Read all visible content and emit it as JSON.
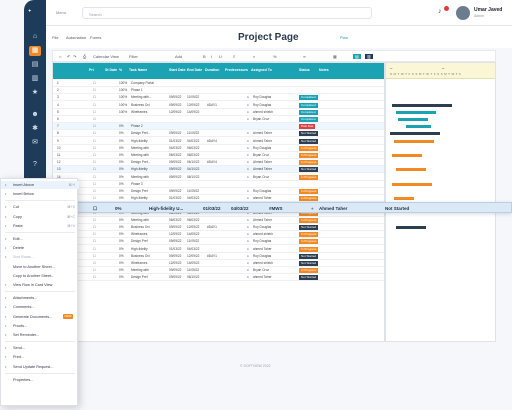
{
  "topbar": {
    "menu": "Menu",
    "search_placeholder": "Search",
    "user_name": "Umar Javed",
    "user_role": "Admin"
  },
  "subbar": {
    "tabs": [
      "File",
      "Automation",
      "Forms"
    ],
    "title": "Project Page",
    "plan": "Plan"
  },
  "toolbar": {
    "items": [
      "Calendar View",
      "Filter",
      "Add"
    ]
  },
  "grid": {
    "headers": [
      "Pri",
      "St Date",
      "%",
      "Task Name",
      "Start Date",
      "End Date",
      "Duration",
      "Predecessors",
      "Assigned To",
      "Status",
      "Notes"
    ],
    "rows": [
      {
        "num": "1",
        "pct": "100%",
        "task": "Company Portal",
        "start": "",
        "end": "",
        "dur": "",
        "assignee": "",
        "status": "",
        "scolor": ""
      },
      {
        "num": "2",
        "pct": "100%",
        "task": "Phase 1",
        "start": "",
        "end": "",
        "dur": "",
        "assignee": "",
        "status": "",
        "scolor": ""
      },
      {
        "num": "3",
        "pct": "100%",
        "task": "Meeting with...",
        "start": "09/09/22",
        "end": "11/09/22",
        "dur": "",
        "assignee": "Roy Douglas",
        "status": "Completed",
        "scolor": "#1ba3b3"
      },
      {
        "num": "4",
        "pct": "100%",
        "task": "Business Ovi",
        "start": "09/09/22",
        "end": "12/09/22",
        "dur": "#DAY1",
        "assignee": "Roy Douglas",
        "status": "Completed",
        "scolor": "#1ba3b3"
      },
      {
        "num": "5",
        "pct": "100%",
        "task": "Wireframes",
        "start": "12/09/22",
        "end": "14/09/22",
        "dur": "",
        "assignee": "ahmed shiekh",
        "status": "Completed",
        "scolor": "#1ba3b3"
      },
      {
        "num": "6",
        "pct": "",
        "task": "",
        "start": "",
        "end": "",
        "dur": "",
        "assignee": "Bryan Cruz",
        "status": "Completed",
        "scolor": "#1ba3b3"
      },
      {
        "num": "7",
        "pct": "0%",
        "task": "Phase 2",
        "start": "",
        "end": "",
        "dur": "",
        "assignee": "",
        "status": "Past Due",
        "scolor": "#d64545"
      },
      {
        "num": "8",
        "pct": "0%",
        "task": "Design Pref...",
        "start": "09/09/22",
        "end": "11/09/22",
        "dur": "",
        "assignee": "Ahmed Taher",
        "status": "Not Started",
        "scolor": "#2c3e50"
      },
      {
        "num": "9",
        "pct": "0%",
        "task": "High-fidelity",
        "start": "01/03/22",
        "end": "04/03/22",
        "dur": "#DAY4",
        "assignee": "Ahmed Taher",
        "status": "Not Started",
        "scolor": "#2c3e50"
      },
      {
        "num": "10",
        "pct": "0%",
        "task": "Meeting with",
        "start": "04/03/22",
        "end": "06/03/22",
        "dur": "",
        "assignee": "Roy Douglas",
        "status": "In Progress",
        "scolor": "#f08a24"
      },
      {
        "num": "11",
        "pct": "0%",
        "task": "Meeting with",
        "start": "06/03/22",
        "end": "06/03/22",
        "dur": "",
        "assignee": "Bryan Cruz",
        "status": "In Progress",
        "scolor": "#f08a24"
      },
      {
        "num": "12",
        "pct": "0%",
        "task": "Design Pref...",
        "start": "09/09/22",
        "end": "06/10/22",
        "dur": "#DAY4",
        "assignee": "Ahmed Taher",
        "status": "In Progress",
        "scolor": "#f08a24"
      },
      {
        "num": "13",
        "pct": "0%",
        "task": "High-fidelity",
        "start": "09/09/22",
        "end": "04/10/22",
        "dur": "",
        "assignee": "Ahmed Taher",
        "status": "Not Started",
        "scolor": "#2c3e50"
      },
      {
        "num": "14",
        "pct": "0%",
        "task": "Meeting with",
        "start": "09/09/22",
        "end": "06/10/22",
        "dur": "",
        "assignee": "Bryan Cruz",
        "status": "In Progress",
        "scolor": "#f08a24"
      },
      {
        "num": "15",
        "pct": "0%",
        "task": "Phase 3",
        "start": "",
        "end": "",
        "dur": "",
        "assignee": "",
        "status": "",
        "scolor": ""
      },
      {
        "num": "16",
        "pct": "0%",
        "task": "Design Pref",
        "start": "09/09/22",
        "end": "11/09/22",
        "dur": "",
        "assignee": "Roy Douglas",
        "status": "In Progress",
        "scolor": "#f08a24"
      },
      {
        "num": "17",
        "pct": "0%",
        "task": "High-fidelity",
        "start": "01/03/22",
        "end": "04/03/22",
        "dur": "",
        "assignee": "ahmed Taher",
        "status": "In Progress",
        "scolor": "#f08a24"
      },
      {
        "num": "18",
        "pct": "0%",
        "task": "Meeting with",
        "start": "04/03/22",
        "end": "06/03/22",
        "dur": "",
        "assignee": "Bryan Cruz",
        "status": "In Progress",
        "scolor": "#f08a24"
      },
      {
        "num": "19",
        "pct": "0%",
        "task": "Meeting with",
        "start": "06/03/22",
        "end": "06/03/22",
        "dur": "",
        "assignee": "Ahmed Taher",
        "status": "In Progress",
        "scolor": "#f08a24"
      },
      {
        "num": "20",
        "pct": "0%",
        "task": "Meeting with",
        "start": "06/03/22",
        "end": "06/03/22",
        "dur": "",
        "assignee": "Ahmed Taher",
        "status": "In Progress",
        "scolor": "#f08a24"
      },
      {
        "num": "21",
        "pct": "0%",
        "task": "Business Ovi",
        "start": "09/09/22",
        "end": "12/09/22",
        "dur": "#DAY1",
        "assignee": "Roy Douglas",
        "status": "Not Started",
        "scolor": "#2c3e50"
      },
      {
        "num": "22",
        "pct": "0%",
        "task": "Wireframes",
        "start": "12/09/22",
        "end": "14/09/22",
        "dur": "",
        "assignee": "ahmed shiekh",
        "status": "In Progress",
        "scolor": "#f08a24"
      },
      {
        "num": "23",
        "pct": "0%",
        "task": "Design Pref",
        "start": "09/09/22",
        "end": "11/09/22",
        "dur": "",
        "assignee": "Roy Douglas",
        "status": "In Progress",
        "scolor": "#f08a24"
      },
      {
        "num": "24",
        "pct": "0%",
        "task": "High-fidelity",
        "start": "01/03/22",
        "end": "04/03/22",
        "dur": "",
        "assignee": "ahmed Taher",
        "status": "In Progress",
        "scolor": "#f08a24"
      },
      {
        "num": "25",
        "pct": "0%",
        "task": "Business Ovi",
        "start": "09/09/22",
        "end": "12/09/22",
        "dur": "#DAY1",
        "assignee": "Roy Douglas",
        "status": "Not Started",
        "scolor": "#2c3e50"
      },
      {
        "num": "26",
        "pct": "0%",
        "task": "Wireframes",
        "start": "12/09/22",
        "end": "14/09/22",
        "dur": "",
        "assignee": "ahmed shiekh",
        "status": "Not Started",
        "scolor": "#2c3e50"
      },
      {
        "num": "27",
        "pct": "0%",
        "task": "Meeting with",
        "start": "09/09/22",
        "end": "11/09/22",
        "dur": "",
        "assignee": "Bryan Cruz",
        "status": "In Progress",
        "scolor": "#f08a24"
      },
      {
        "num": "28",
        "pct": "0%",
        "task": "Design Pref",
        "start": "09/09/22",
        "end": "06/10/22",
        "dur": "",
        "assignee": "ahmed Taher",
        "status": "Not Started",
        "scolor": "#2c3e50"
      }
    ]
  },
  "drag_row": {
    "pct": "0%",
    "task": "High-fidelity U...",
    "start": "01/03/22",
    "end": "04/03/22",
    "dur": "#MWS",
    "assignee": "Ahmed Taher",
    "status": "Not Started"
  },
  "context_menu": {
    "items": [
      {
        "label": "Insert Above",
        "shortcut": "⌘+I",
        "icon": "insert-icon",
        "hl": true
      },
      {
        "label": "Insert Below",
        "shortcut": "",
        "icon": "insert-icon"
      },
      {
        "label": "Cut",
        "shortcut": "⌘+X",
        "icon": "cut-icon"
      },
      {
        "label": "Copy",
        "shortcut": "⌘+C",
        "icon": "copy-icon"
      },
      {
        "label": "Paste",
        "shortcut": "⌘+V",
        "icon": "paste-icon"
      },
      {
        "label": "Edit...",
        "shortcut": "",
        "icon": "edit-icon"
      },
      {
        "label": "Delete",
        "shortcut": "",
        "icon": "delete-icon"
      },
      {
        "label": "Sort Rows...",
        "shortcut": "",
        "icon": "sort-icon",
        "dim": true
      },
      {
        "label": "Move to Another Sheet...",
        "shortcut": "",
        "icon": ""
      },
      {
        "label": "Copy to Another Sheet...",
        "shortcut": "",
        "icon": ""
      },
      {
        "label": "View Row in Card View",
        "shortcut": "",
        "icon": "card-icon"
      },
      {
        "label": "Attachments...",
        "shortcut": "",
        "icon": "attach-icon"
      },
      {
        "label": "Comments...",
        "shortcut": "",
        "icon": "comment-icon"
      },
      {
        "label": "Generate Documents...",
        "shortcut": "",
        "icon": "doc-icon",
        "pill": "NEW"
      },
      {
        "label": "Proofs...",
        "shortcut": "",
        "icon": "proof-icon"
      },
      {
        "label": "Set Reminder...",
        "shortcut": "",
        "icon": "reminder-icon"
      },
      {
        "label": "Send...",
        "shortcut": "",
        "icon": "send-icon"
      },
      {
        "label": "Print...",
        "shortcut": "",
        "icon": "print-icon"
      },
      {
        "label": "Send Update Request...",
        "shortcut": "",
        "icon": "update-icon"
      },
      {
        "label": "Properties...",
        "shortcut": "",
        "icon": ""
      }
    ]
  },
  "footer": "© SOFTVIEW 2022",
  "colors": {
    "accent": "#1ba3b3",
    "rail": "#1f3b5a",
    "orange": "#f08a24"
  }
}
